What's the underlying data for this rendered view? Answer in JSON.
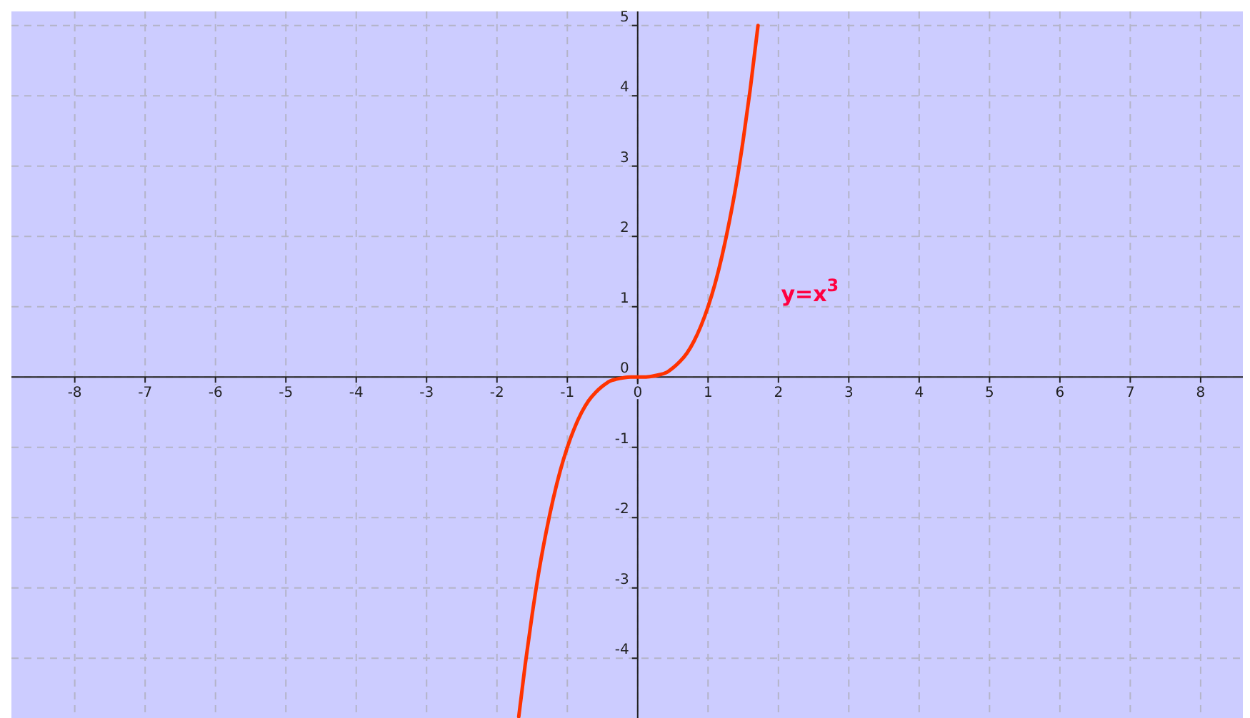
{
  "chart_data": {
    "type": "line",
    "xlim": [
      -8.9,
      8.6
    ],
    "ylim": [
      -4.85,
      5.2
    ],
    "xticks": [
      -8,
      -7,
      -6,
      -5,
      -4,
      -3,
      -2,
      -1,
      0,
      1,
      2,
      3,
      4,
      5,
      6,
      7,
      8
    ],
    "yticks": [
      -4,
      -3,
      -2,
      -1,
      0,
      1,
      2,
      3,
      4,
      5
    ],
    "grid": true,
    "marker": "none",
    "line_style": "solid",
    "x": [
      -1.69,
      -1.6,
      -1.5,
      -1.4,
      -1.3,
      -1.2,
      -1.1,
      -1,
      -0.9,
      -0.8,
      -0.7,
      -0.6,
      -0.5,
      -0.4,
      -0.3,
      -0.2,
      -0.1,
      0,
      0.1,
      0.2,
      0.3,
      0.4,
      0.5,
      0.6,
      0.7,
      0.8,
      0.9,
      1,
      1.1,
      1.2,
      1.3,
      1.4,
      1.5,
      1.6,
      1.71
    ],
    "series": [
      {
        "color": "#ff3300",
        "values": [
          -4.83,
          -4.1,
          -3.38,
          -2.74,
          -2.2,
          -1.73,
          -1.33,
          -1,
          -0.73,
          -0.51,
          -0.34,
          -0.22,
          -0.13,
          -0.06,
          -0.03,
          -0.01,
          0,
          0,
          0,
          0.01,
          0.03,
          0.06,
          0.13,
          0.22,
          0.34,
          0.51,
          0.73,
          1,
          1.33,
          1.73,
          2.2,
          2.74,
          3.38,
          4.1,
          5.0
        ]
      }
    ],
    "annotations": [
      "y=x$^{3}$"
    ]
  }
}
